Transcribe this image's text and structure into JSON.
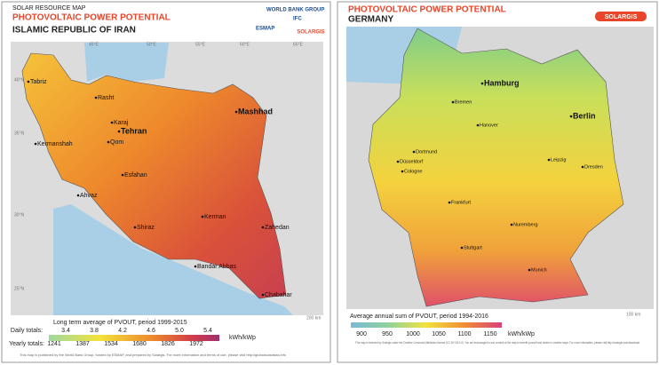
{
  "left": {
    "kicker": "SOLAR RESOURCE MAP",
    "title": "PHOTOVOLTAIC POWER POTENTIAL",
    "country": "ISLAMIC REPUBLIC OF IRAN",
    "logos": [
      "WORLD BANK GROUP",
      "ESMAP",
      "IFC",
      "SOLARGIS"
    ],
    "grid_labels": [
      "45°E",
      "50°E",
      "55°E",
      "60°E",
      "65°E",
      "40°N",
      "35°N",
      "30°N",
      "25°N"
    ],
    "cities": [
      "Tabriz",
      "Rasht",
      "Karaj",
      "Tehran",
      "Mashhad",
      "Qom",
      "Kermanshah",
      "Esfahan",
      "Ahvaz",
      "Shiraz",
      "Kerman",
      "Zahedan",
      "Bandar Abbas",
      "Chabahar"
    ],
    "legend": {
      "title": "Long term average of PVOUT, period 1999-2015",
      "daily_label": "Daily totals:",
      "daily": [
        3.4,
        3.8,
        4.2,
        4.6,
        5.0,
        5.4
      ],
      "daily_labels": [
        "3.4",
        "3.8",
        "4.2",
        "4.6",
        "5.0",
        "5.4"
      ],
      "yearly_label": "Yearly totals:",
      "yearly": [
        1241,
        1387,
        1534,
        1680,
        1826,
        1972
      ],
      "unit": "kWh/kWp"
    },
    "scale": "200 km",
    "footer": "This map is published by the World Bank Group, funded by ESMAP, and prepared by Solargis. For more information and terms of use, please visit http://globalsolaratlas.info"
  },
  "right": {
    "title": "PHOTOVOLTAIC POWER POTENTIAL",
    "country": "GERMANY",
    "logo": "SOLARGIS",
    "cities": [
      "Hamburg",
      "Bremen",
      "Berlin",
      "Hanover",
      "Dortmund",
      "Düsseldorf",
      "Cologne",
      "Leipzig",
      "Dresden",
      "Frankfurt",
      "Nuremberg",
      "Stuttgart",
      "Munich"
    ],
    "legend": {
      "title": "Average annual sum of PVOUT, period 1994-2016",
      "values": [
        900,
        950,
        1000,
        1050,
        1100,
        1150
      ],
      "unit": "kWh/kWp"
    },
    "scale": "100 km",
    "footer": "This map is licensed by Solargis under the Creative Commons Attribution license (CC BY SA 4.0). You are encouraged to use content of the map to benefit yourself and others in creative ways. For more information, please visit http://solargis.com/download"
  }
}
